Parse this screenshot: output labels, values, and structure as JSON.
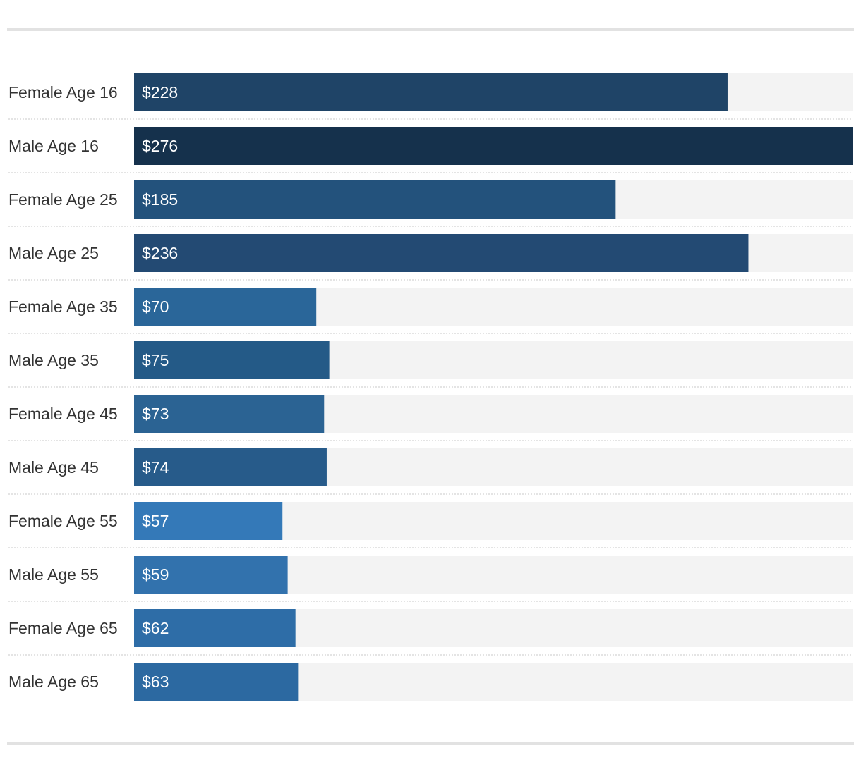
{
  "chart_data": {
    "type": "bar",
    "orientation": "horizontal",
    "categories": [
      "Female Age 16",
      "Male Age 16",
      "Female Age 25",
      "Male Age 25",
      "Female Age 35",
      "Male Age 35",
      "Female Age 45",
      "Male Age 45",
      "Female Age 55",
      "Male Age 55",
      "Female Age 65",
      "Male Age 65"
    ],
    "values": [
      228,
      276,
      185,
      236,
      70,
      75,
      73,
      74,
      57,
      59,
      62,
      63
    ],
    "value_labels": [
      "$228",
      "$276",
      "$185",
      "$236",
      "$70",
      "$75",
      "$73",
      "$74",
      "$57",
      "$59",
      "$62",
      "$63"
    ],
    "bar_colors": [
      "#1f4467",
      "#15314c",
      "#23527c",
      "#234a73",
      "#2a6699",
      "#245a87",
      "#2b6393",
      "#275b8a",
      "#3479b8",
      "#3272ad",
      "#2e6da7",
      "#2c69a1"
    ],
    "xlim": [
      0,
      276
    ],
    "track_color": "#f3f3f3",
    "title": "",
    "xlabel": "",
    "ylabel": "",
    "grid": false
  }
}
